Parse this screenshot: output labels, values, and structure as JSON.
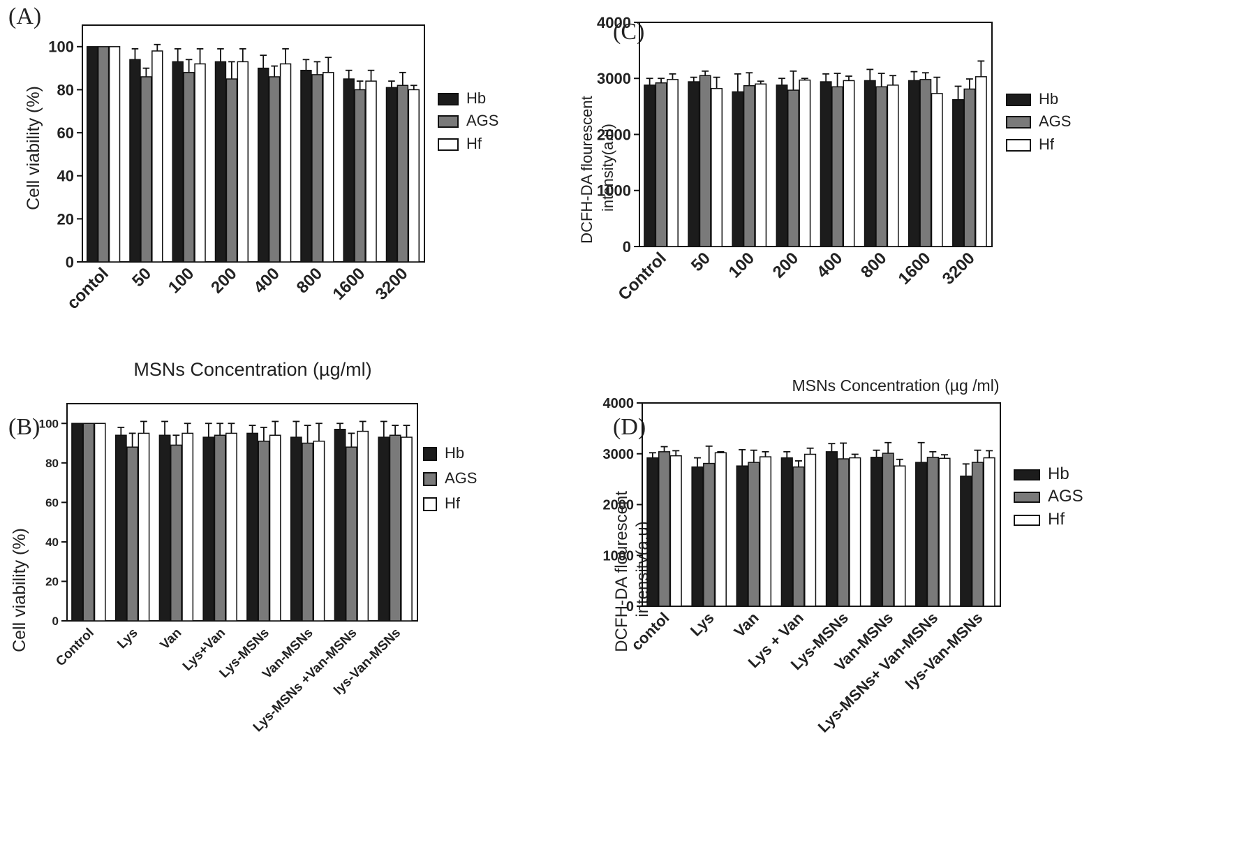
{
  "panels": [
    {
      "id": "A",
      "label": "(A)",
      "chart_data": {
        "type": "bar",
        "ylabel": "Cell viability (%)",
        "xlabel": "MSNs Concentration (µg/ml)",
        "ylim": [
          0,
          110
        ],
        "yticks": [
          0,
          20,
          40,
          60,
          80,
          100
        ],
        "categories": [
          "contol",
          "50",
          "100",
          "200",
          "400",
          "800",
          "1600",
          "3200"
        ],
        "series": [
          {
            "name": "Hb",
            "values": [
              100,
              94,
              93,
              93,
              90,
              89,
              85,
              81
            ],
            "errors": [
              0,
              5,
              6,
              6,
              6,
              5,
              4,
              3
            ]
          },
          {
            "name": "AGS",
            "values": [
              100,
              86,
              88,
              85,
              86,
              87,
              80,
              82
            ],
            "errors": [
              0,
              4,
              6,
              8,
              5,
              6,
              4,
              6
            ]
          },
          {
            "name": "Hf",
            "values": [
              100,
              98,
              92,
              93,
              92,
              88,
              84,
              80
            ],
            "errors": [
              0,
              3,
              7,
              6,
              7,
              7,
              5,
              2
            ]
          }
        ]
      }
    },
    {
      "id": "B",
      "label": "(B)",
      "chart_data": {
        "type": "bar",
        "ylabel": "Cell viability (%)",
        "xlabel": "",
        "ylim": [
          0,
          110
        ],
        "yticks": [
          0,
          20,
          40,
          60,
          80,
          100
        ],
        "categories": [
          "Control",
          "Lys",
          "Van",
          "Lys+Van",
          "Lys-MSNs",
          "Van-MSNs",
          "Lys-MSNs +Van-MSNs",
          "lys-Van-MSNs"
        ],
        "series": [
          {
            "name": "Hb",
            "values": [
              100,
              94,
              94,
              93,
              95,
              93,
              97,
              93
            ],
            "errors": [
              0,
              4,
              7,
              7,
              4,
              8,
              3,
              8
            ]
          },
          {
            "name": "AGS",
            "values": [
              100,
              88,
              89,
              94,
              91,
              90,
              88,
              94
            ],
            "errors": [
              0,
              7,
              5,
              6,
              7,
              9,
              7,
              5
            ]
          },
          {
            "name": "Hf",
            "values": [
              100,
              95,
              95,
              95,
              94,
              91,
              96,
              93
            ],
            "errors": [
              0,
              6,
              5,
              5,
              7,
              9,
              5,
              6
            ]
          }
        ]
      }
    },
    {
      "id": "C",
      "label": "(C)",
      "chart_data": {
        "type": "bar",
        "ylabel": "DCFH-DA flourescent intensity(a.u)",
        "xlabel": "MSNs Concentration (µg /ml)",
        "ylim": [
          0,
          4000
        ],
        "yticks": [
          0,
          1000,
          2000,
          3000,
          4000
        ],
        "categories": [
          "Control",
          "50",
          "100",
          "200",
          "400",
          "800",
          "1600",
          "3200"
        ],
        "series": [
          {
            "name": "Hb",
            "values": [
              2880,
              2940,
              2760,
              2880,
              2940,
              2960,
              2960,
              2620
            ],
            "errors": [
              120,
              80,
              320,
              120,
              140,
              200,
              160,
              240
            ]
          },
          {
            "name": "AGS",
            "values": [
              2920,
              3050,
              2870,
              2790,
              2850,
              2850,
              2980,
              2810
            ],
            "errors": [
              80,
              80,
              230,
              340,
              240,
              240,
              120,
              180
            ]
          },
          {
            "name": "Hf",
            "values": [
              2980,
              2820,
              2900,
              2970,
              2960,
              2880,
              2730,
              3030
            ],
            "errors": [
              100,
              200,
              50,
              30,
              80,
              170,
              290,
              280
            ]
          }
        ]
      }
    },
    {
      "id": "D",
      "label": "(D)",
      "chart_data": {
        "type": "bar",
        "ylabel": "DCFH-DA flourescent intensity(a.u)",
        "xlabel": "",
        "ylim": [
          0,
          4000
        ],
        "yticks": [
          0,
          1000,
          2000,
          3000,
          4000
        ],
        "categories": [
          "contol",
          "Lys",
          "Van",
          "Lys + Van",
          "Lys-MSNs",
          "Van-MSNs",
          "Lys-MSNs+ Van-MSNs",
          "lys-Van-MSNs"
        ],
        "series": [
          {
            "name": "Hb",
            "values": [
              2920,
              2740,
              2760,
              2920,
              3040,
              2930,
              2830,
              2560
            ],
            "errors": [
              100,
              180,
              320,
              120,
              160,
              140,
              390,
              240
            ]
          },
          {
            "name": "AGS",
            "values": [
              3040,
              2810,
              2830,
              2740,
              2900,
              3010,
              2930,
              2830
            ],
            "errors": [
              100,
              340,
              240,
              120,
              310,
              210,
              110,
              240
            ]
          },
          {
            "name": "Hf",
            "values": [
              2960,
              3020,
              2940,
              2990,
              2920,
              2760,
              2910,
              2920
            ],
            "errors": [
              100,
              20,
              100,
              120,
              70,
              130,
              70,
              140
            ]
          }
        ]
      }
    }
  ],
  "legend_colors": {
    "Hb": "#1c1c1c",
    "AGS": "#7a7a7a",
    "Hf": "#ffffff"
  }
}
